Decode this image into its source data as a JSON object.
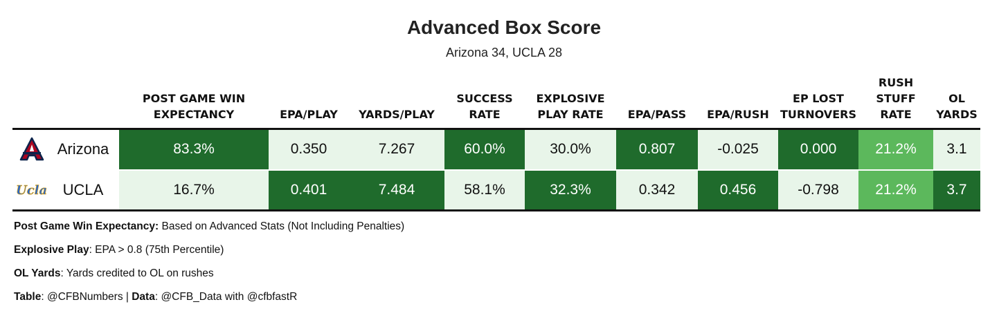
{
  "title": "Advanced Box Score",
  "subtitle": "Arizona 34, UCLA 28",
  "colors": {
    "dark_green": "#1f6b2c",
    "medium_green": "#5cb85c",
    "light_green": "#e8f5e9",
    "text_on_dark": "#ffffff",
    "text_on_light": "#111111",
    "arizona_blue": "#0c234b",
    "arizona_red": "#ab0520",
    "ucla_blue": "#2d68c4",
    "ucla_gold": "#f2a900"
  },
  "chart_data": {
    "type": "table",
    "columns": [
      {
        "key": "wp",
        "label_lines": [
          "POST GAME WIN",
          "EXPECTANCY"
        ]
      },
      {
        "key": "epa_play",
        "label_lines": [
          "EPA/PLAY"
        ]
      },
      {
        "key": "yards_play",
        "label_lines": [
          "YARDS/PLAY"
        ]
      },
      {
        "key": "success",
        "label_lines": [
          "SUCCESS",
          "RATE"
        ]
      },
      {
        "key": "explosive",
        "label_lines": [
          "EXPLOSIVE",
          "PLAY RATE"
        ]
      },
      {
        "key": "epa_pass",
        "label_lines": [
          "EPA/PASS"
        ]
      },
      {
        "key": "epa_rush",
        "label_lines": [
          "EPA/RUSH"
        ]
      },
      {
        "key": "ep_lost",
        "label_lines": [
          "EP LOST",
          "TURNOVERS"
        ]
      },
      {
        "key": "stuff",
        "label_lines": [
          "RUSH",
          "STUFF",
          "RATE"
        ]
      },
      {
        "key": "ol_yards",
        "label_lines": [
          "OL",
          "YARDS"
        ]
      }
    ],
    "rows": [
      {
        "team": "Arizona",
        "logo_icon": "arizona-a-logo-icon",
        "cells": [
          {
            "text": "83.3%",
            "shade": "dark"
          },
          {
            "text": "0.350",
            "shade": "light"
          },
          {
            "text": "7.267",
            "shade": "light"
          },
          {
            "text": "60.0%",
            "shade": "dark"
          },
          {
            "text": "30.0%",
            "shade": "light"
          },
          {
            "text": "0.807",
            "shade": "dark"
          },
          {
            "text": "-0.025",
            "shade": "light"
          },
          {
            "text": "0.000",
            "shade": "dark"
          },
          {
            "text": "21.2%",
            "shade": "medium"
          },
          {
            "text": "3.1",
            "shade": "light"
          }
        ]
      },
      {
        "team": "UCLA",
        "logo_icon": "ucla-script-logo-icon",
        "logo_text": "Ucla",
        "cells": [
          {
            "text": "16.7%",
            "shade": "light"
          },
          {
            "text": "0.401",
            "shade": "dark"
          },
          {
            "text": "7.484",
            "shade": "dark"
          },
          {
            "text": "58.1%",
            "shade": "light"
          },
          {
            "text": "32.3%",
            "shade": "dark"
          },
          {
            "text": "0.342",
            "shade": "light"
          },
          {
            "text": "0.456",
            "shade": "dark"
          },
          {
            "text": "-0.798",
            "shade": "light"
          },
          {
            "text": "21.2%",
            "shade": "medium"
          },
          {
            "text": "3.7",
            "shade": "dark"
          }
        ]
      }
    ]
  },
  "notes": [
    {
      "bold": "Post Game Win Expectancy:",
      "text": " Based on Advanced Stats (Not Including Penalties)"
    },
    {
      "bold": "Explosive Play",
      "text": ": EPA > 0.8 (75th Percentile)"
    },
    {
      "bold": "OL Yards",
      "text": ": Yards credited to OL on rushes"
    },
    {
      "bold": "Table",
      "text": ": @CFBNumbers | ",
      "bold2": "Data",
      "text2": ": @CFB_Data with @cfbfastR"
    }
  ]
}
